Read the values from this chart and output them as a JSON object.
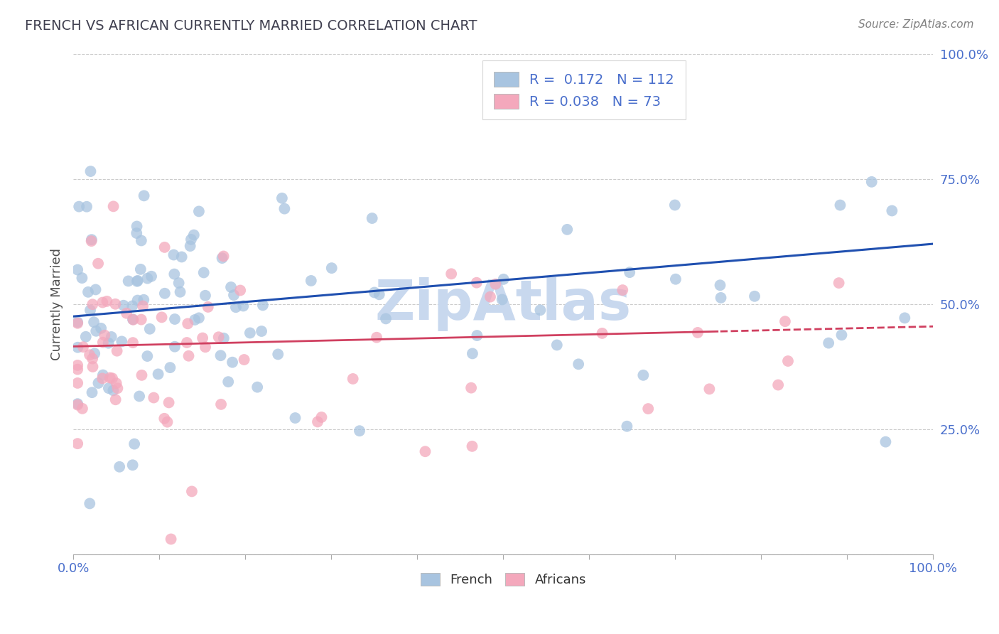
{
  "title": "FRENCH VS AFRICAN CURRENTLY MARRIED CORRELATION CHART",
  "source_text": "Source: ZipAtlas.com",
  "ylabel": "Currently Married",
  "legend_bottom_labels": [
    "French",
    "Africans"
  ],
  "french_R": 0.172,
  "french_N": 112,
  "african_R": 0.038,
  "african_N": 73,
  "french_color": "#a8c4e0",
  "african_color": "#f4a8bc",
  "french_line_color": "#2050b0",
  "african_line_color": "#d04060",
  "background_color": "#ffffff",
  "grid_color": "#cccccc",
  "title_color": "#404050",
  "axis_label_color": "#4a6fcc",
  "watermark_color": "#c8d8ee",
  "xlim": [
    0.0,
    1.0
  ],
  "ylim": [
    0.0,
    1.0
  ],
  "french_line_start_y": 0.475,
  "french_line_end_y": 0.62,
  "african_line_start_y": 0.415,
  "african_line_end_y": 0.455
}
